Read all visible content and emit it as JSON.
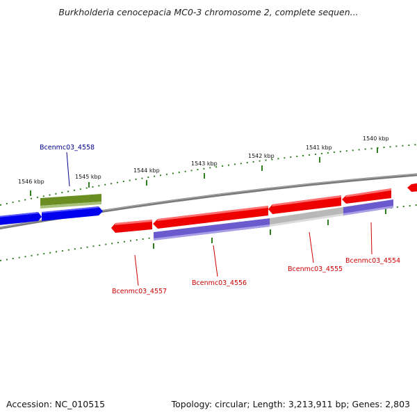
{
  "title": "Burkholderia cenocepacia MC0-3 chromosome 2, complete sequen...",
  "footer": {
    "accession": "Accession: NC_010515",
    "summary": "Topology: circular; Length: 3,213,911 bp; Genes: 2,803"
  },
  "ticks": [
    {
      "label": "1546 kbp"
    },
    {
      "label": "1545 kbp"
    },
    {
      "label": "1544 kbp"
    },
    {
      "label": "1543 kbp"
    },
    {
      "label": "1542 kbp"
    },
    {
      "label": "1541 kbp"
    },
    {
      "label": "1540 kbp"
    }
  ],
  "gene_labels": [
    {
      "name": "Bcenmc03_4558",
      "color": "#00008b"
    },
    {
      "name": "Bcenmc03_4557",
      "color": "#cc0000"
    },
    {
      "name": "Bcenmc03_4556",
      "color": "#cc0000"
    },
    {
      "name": "Bcenmc03_4555",
      "color": "#cc0000"
    },
    {
      "name": "Bcenmc03_4554",
      "color": "#cc0000"
    }
  ],
  "colors": {
    "backbone": "#808080",
    "tick_marks": "#2e7d1e",
    "forward_gene": "#ee0000",
    "reverse_gene": "#0000ee",
    "olive_gene": "#6b8e23",
    "purple_track": "#6a5acd",
    "grey_track": "#b8b8b8"
  }
}
